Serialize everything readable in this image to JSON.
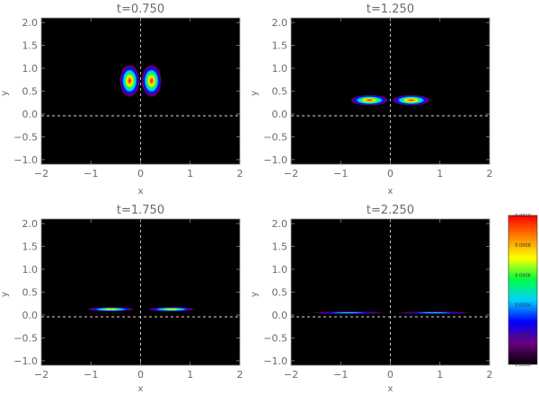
{
  "chart_data": {
    "type": "heatmap",
    "panels": [
      {
        "title": "t=0.750",
        "xlabel": "x",
        "ylabel": "y",
        "xlim": [
          -2,
          2
        ],
        "ylim": [
          -1.1,
          2.1
        ],
        "xticks": [
          "−2",
          "−1",
          "0",
          "1",
          "2"
        ],
        "yticks": [
          "−1.0",
          "−0.5",
          "0.0",
          "0.5",
          "1.0",
          "1.5",
          "2.0"
        ],
        "lobes": [
          {
            "cx": -0.22,
            "cy": 0.72,
            "width": 0.45,
            "y_base": 0.33,
            "y_top": 1.12,
            "peak": 0.001
          },
          {
            "cx": 0.22,
            "cy": 0.72,
            "width": 0.45,
            "y_base": 0.33,
            "y_top": 1.12,
            "peak": 0.001
          }
        ]
      },
      {
        "title": "t=1.250",
        "xlabel": "x",
        "ylabel": "y",
        "xlim": [
          -2,
          2
        ],
        "ylim": [
          -1.1,
          2.1
        ],
        "xticks": [
          "−2",
          "−1",
          "0",
          "1",
          "2"
        ],
        "yticks": [
          "−1.0",
          "−0.5",
          "0.0",
          "0.5",
          "1.0",
          "1.5",
          "2.0"
        ],
        "lobes": [
          {
            "cx": -0.42,
            "cy": 0.27,
            "width": 0.85,
            "y_base": 0.17,
            "y_top": 0.43,
            "peak": 0.001
          },
          {
            "cx": 0.42,
            "cy": 0.27,
            "width": 0.85,
            "y_base": 0.17,
            "y_top": 0.43,
            "peak": 0.001
          }
        ]
      },
      {
        "title": "t=1.750",
        "xlabel": "x",
        "ylabel": "y",
        "xlim": [
          -2,
          2
        ],
        "ylim": [
          -1.1,
          2.1
        ],
        "xticks": [
          "−2",
          "−1",
          "0",
          "1",
          "2"
        ],
        "yticks": [
          "−1.0",
          "−0.5",
          "0.0",
          "0.5",
          "1.0",
          "1.5",
          "2.0"
        ],
        "lobes": [
          {
            "cx": -0.6,
            "cy": 0.12,
            "width": 1.05,
            "y_base": 0.07,
            "y_top": 0.18,
            "peak": 0.0009
          },
          {
            "cx": 0.62,
            "cy": 0.12,
            "width": 1.05,
            "y_base": 0.07,
            "y_top": 0.18,
            "peak": 0.0009
          }
        ]
      },
      {
        "title": "t=2.250",
        "xlabel": "x",
        "ylabel": "y",
        "xlim": [
          -2,
          2
        ],
        "ylim": [
          -1.1,
          2.1
        ],
        "xticks": [
          "−2",
          "−1",
          "0",
          "1",
          "2"
        ],
        "yticks": [
          "−1.0",
          "−0.5",
          "0.0",
          "0.5",
          "1.0",
          "1.5",
          "2.0"
        ],
        "lobes": [
          {
            "cx": -0.85,
            "cy": 0.05,
            "width": 1.65,
            "y_base": 0.02,
            "y_top": 0.08,
            "peak": 0.0005
          },
          {
            "cx": 0.88,
            "cy": 0.05,
            "width": 1.65,
            "y_base": 0.02,
            "y_top": 0.08,
            "peak": 0.0005
          }
        ]
      }
    ],
    "guides": {
      "x": 0,
      "y": 0,
      "color": "#d8d8d8",
      "style": "dashed"
    },
    "grid": false,
    "colorbar": {
      "range": [
        0,
        0.001
      ],
      "ticks": [
        "0.0000",
        "0.0002",
        "0.0004",
        "0.0006",
        "0.0008",
        "0.0010"
      ],
      "colormap": [
        "#000000",
        "#6a007f",
        "#0000ff",
        "#00d0ff",
        "#00ff40",
        "#ffff00",
        "#ff8000",
        "#ff0000"
      ]
    }
  }
}
